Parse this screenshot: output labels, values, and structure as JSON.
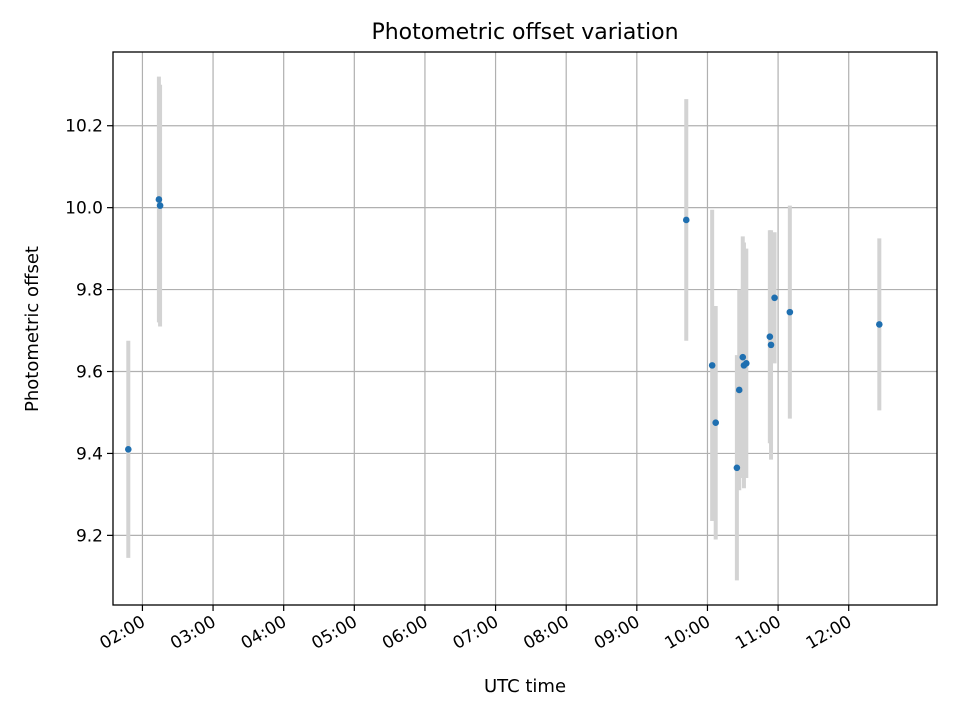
{
  "chart_data": {
    "type": "scatter",
    "title": "Photometric offset variation",
    "xlabel": "UTC time",
    "ylabel": "Photometric offset",
    "x_ticks": [
      "02:00",
      "03:00",
      "04:00",
      "05:00",
      "06:00",
      "07:00",
      "08:00",
      "09:00",
      "10:00",
      "11:00",
      "12:00"
    ],
    "y_ticks": [
      "9.2",
      "9.4",
      "9.6",
      "9.8",
      "10.0",
      "10.2"
    ],
    "xlim": [
      "01:35",
      "13:15"
    ],
    "ylim": [
      9.03,
      10.38
    ],
    "grid": true,
    "marker_color": "#1f6fb0",
    "errorbar_color": "#d3d3d3",
    "series": [
      {
        "points": [
          {
            "x": "01:48",
            "y": 9.41,
            "err": 0.265
          },
          {
            "x": "02:14",
            "y": 10.02,
            "err": 0.3
          },
          {
            "x": "02:15",
            "y": 10.005,
            "err": 0.295
          },
          {
            "x": "09:42",
            "y": 9.97,
            "err": 0.295
          },
          {
            "x": "10:04",
            "y": 9.615,
            "err": 0.38
          },
          {
            "x": "10:07",
            "y": 9.475,
            "err": 0.285
          },
          {
            "x": "10:25",
            "y": 9.365,
            "err": 0.275
          },
          {
            "x": "10:27",
            "y": 9.555,
            "err": 0.245
          },
          {
            "x": "10:30",
            "y": 9.635,
            "err": 0.295
          },
          {
            "x": "10:31",
            "y": 9.615,
            "err": 0.3
          },
          {
            "x": "10:33",
            "y": 9.62,
            "err": 0.28
          },
          {
            "x": "10:53",
            "y": 9.685,
            "err": 0.26
          },
          {
            "x": "10:54",
            "y": 9.665,
            "err": 0.28
          },
          {
            "x": "10:57",
            "y": 9.78,
            "err": 0.16
          },
          {
            "x": "11:10",
            "y": 9.745,
            "err": 0.26
          },
          {
            "x": "12:26",
            "y": 9.715,
            "err": 0.21
          }
        ]
      }
    ]
  }
}
